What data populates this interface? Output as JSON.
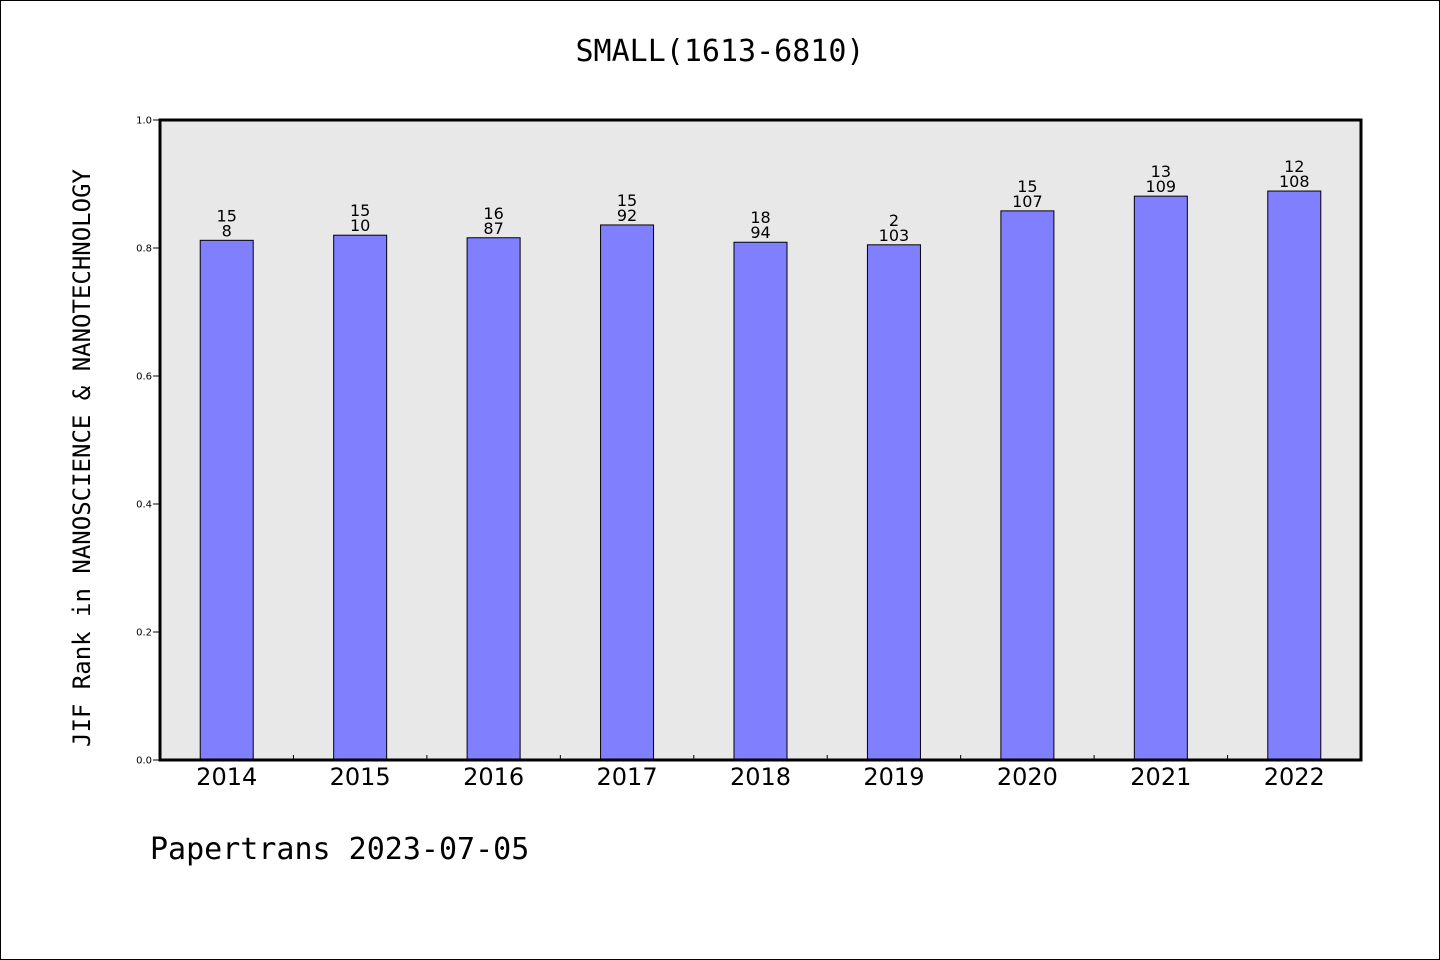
{
  "chart_data": {
    "type": "bar",
    "title": "SMALL(1613-6810)",
    "xlabel": "",
    "ylabel": "JIF Rank in NANOSCIENCE & NANOTECHNOLOGY",
    "categories": [
      "2014",
      "2015",
      "2016",
      "2017",
      "2018",
      "2019",
      "2020",
      "2021",
      "2022"
    ],
    "values": [
      0.812,
      0.82,
      0.816,
      0.836,
      0.809,
      0.805,
      0.858,
      0.881,
      0.889
    ],
    "labels_top": [
      "15",
      "15",
      "16",
      "15",
      "18",
      "2",
      "15",
      "13",
      "12"
    ],
    "labels_bottom": [
      "8",
      "10",
      "87",
      "92",
      "94",
      "103",
      "107",
      "109",
      "108"
    ],
    "ylim": [
      0,
      1.0
    ],
    "yticks": [
      "0.0",
      "0.2",
      "0.4",
      "0.6",
      "0.8",
      "1.0"
    ],
    "grid": false,
    "bar_color": "#8080ff",
    "plot_background": "#e8e8e8"
  },
  "footer": {
    "text": "Papertrans 2023-07-05"
  }
}
